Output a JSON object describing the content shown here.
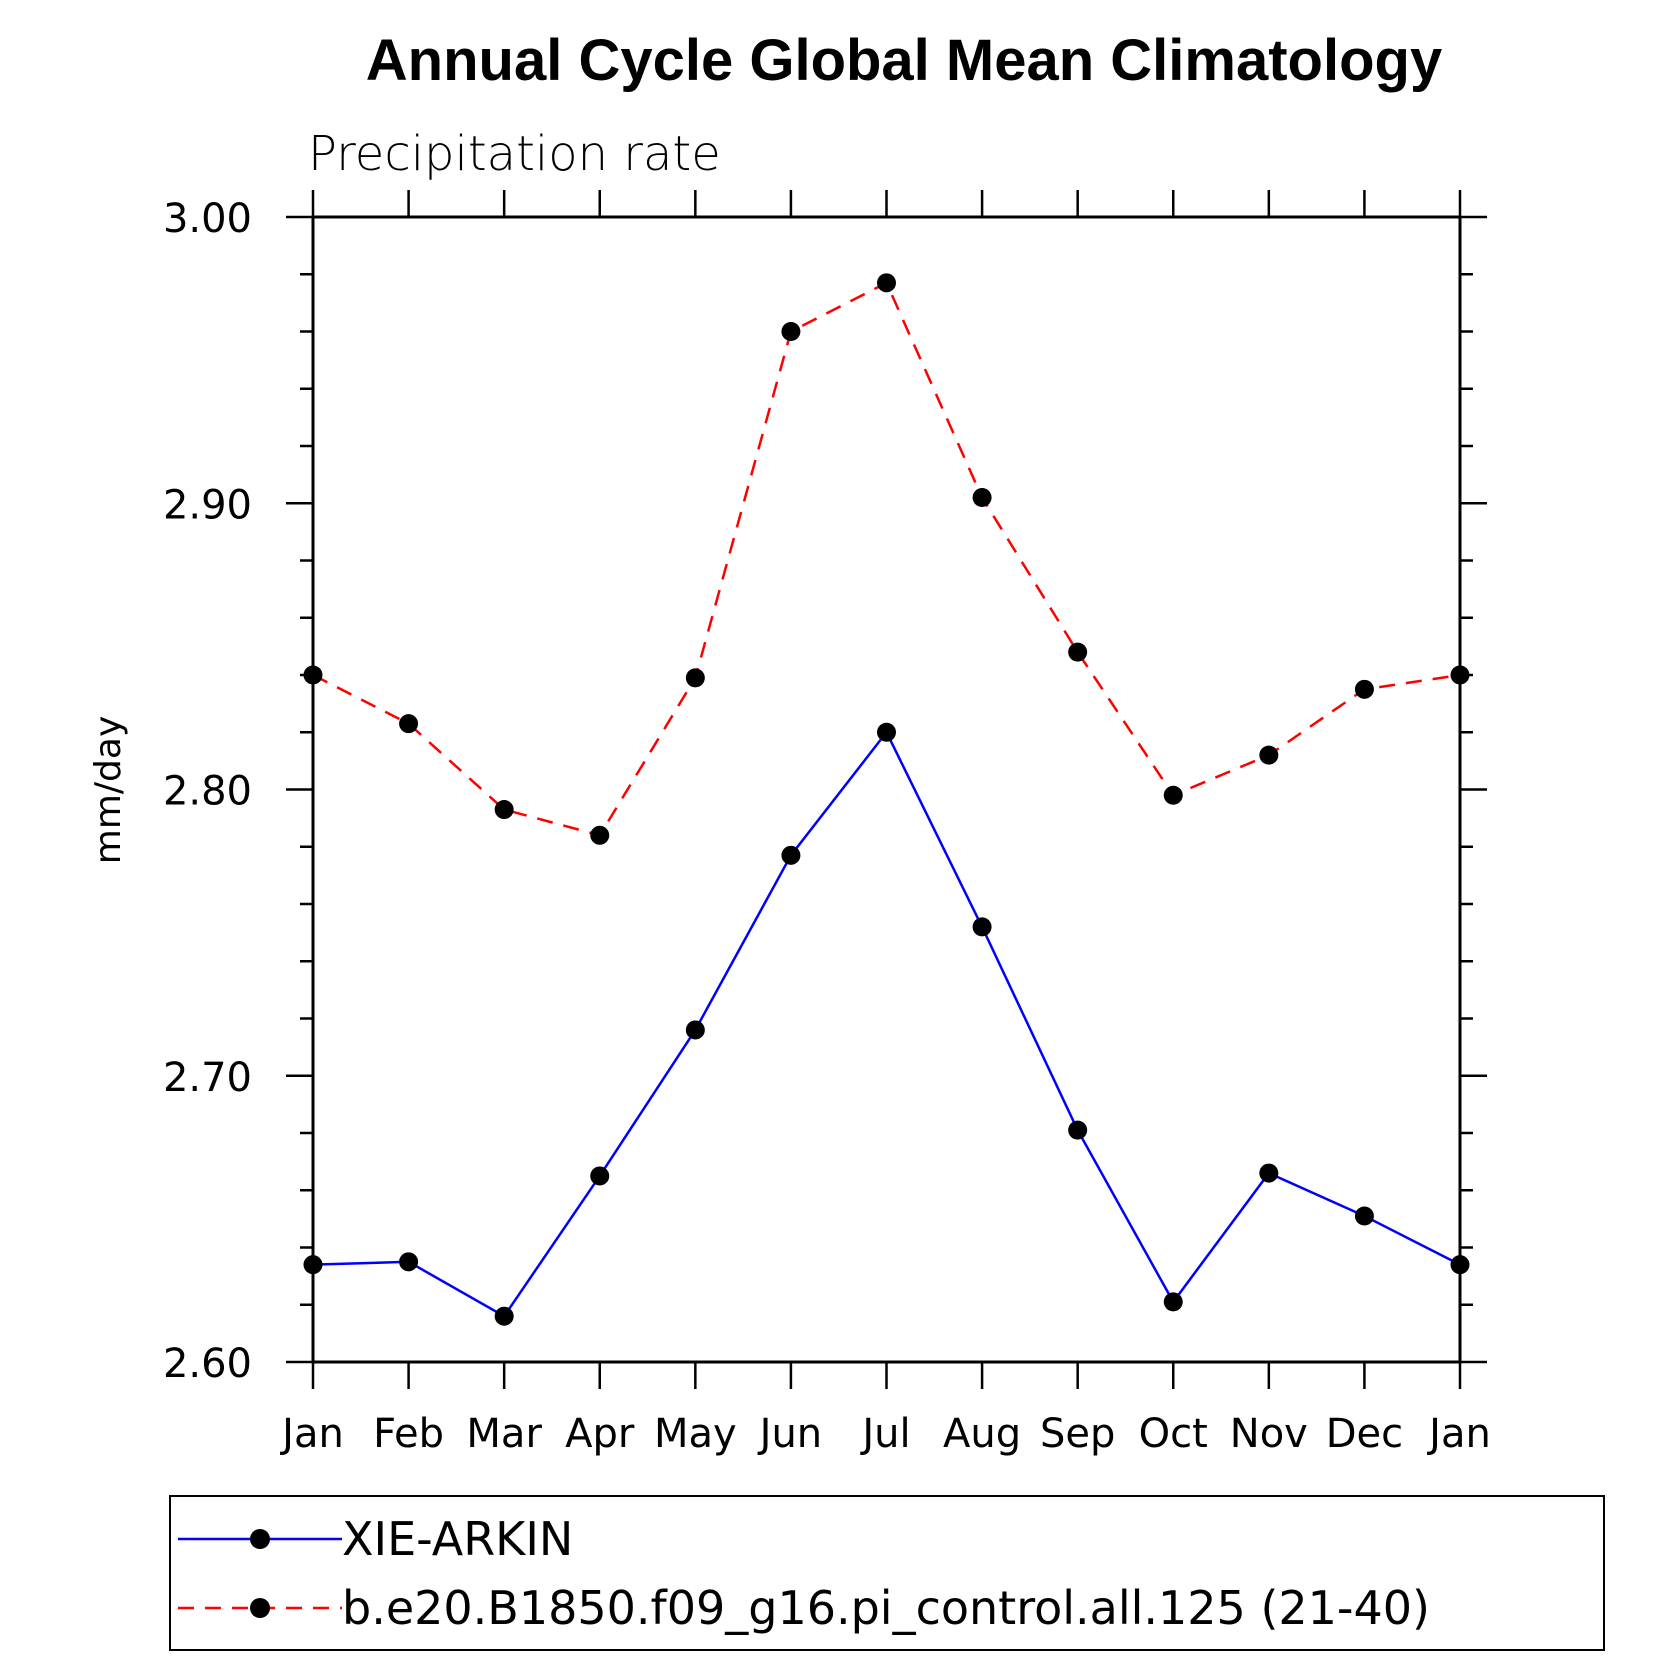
{
  "chart_data": {
    "type": "line",
    "title": "Annual Cycle Global Mean Climatology",
    "subtitle": "Precipitation rate",
    "ylabel": "mm/day",
    "xlabel": "",
    "categories": [
      "Jan",
      "Feb",
      "Mar",
      "Apr",
      "May",
      "Jun",
      "Jul",
      "Aug",
      "Sep",
      "Oct",
      "Nov",
      "Dec",
      "Jan"
    ],
    "ylim": [
      2.6,
      3.0
    ],
    "yticks": [
      "2.60",
      "2.70",
      "2.80",
      "2.90",
      "3.00"
    ],
    "grid": false,
    "legend_position": "bottom",
    "series": [
      {
        "name": "XIE-ARKIN",
        "color": "#0000ff",
        "style": "solid",
        "values": [
          2.634,
          2.635,
          2.616,
          2.665,
          2.716,
          2.777,
          2.82,
          2.752,
          2.681,
          2.621,
          2.666,
          2.651,
          2.634
        ]
      },
      {
        "name": "b.e20.B1850.f09_g16.pi_control.all.125 (21-40)",
        "color": "#ff0000",
        "style": "dashed",
        "values": [
          2.84,
          2.823,
          2.793,
          2.784,
          2.839,
          2.96,
          2.977,
          2.902,
          2.848,
          2.798,
          2.812,
          2.835,
          2.84
        ]
      }
    ]
  }
}
